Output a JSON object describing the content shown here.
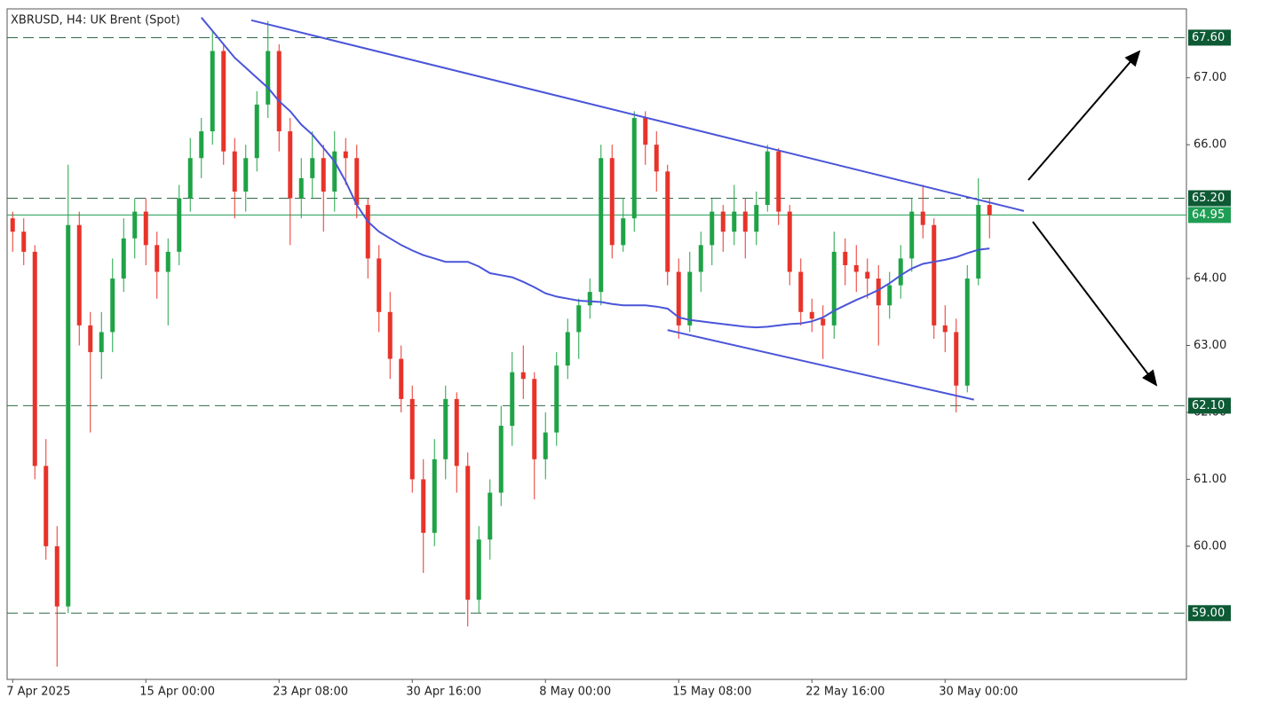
{
  "chart_data": {
    "type": "candlestick",
    "title": "XBRUSD, H4:  UK Brent (Spot)",
    "categories": [
      "7 Apr 2025",
      null,
      null,
      null,
      null,
      null,
      null,
      null,
      null,
      null,
      null,
      null,
      "15 Apr 00:00",
      null,
      null,
      null,
      null,
      null,
      null,
      null,
      null,
      null,
      null,
      null,
      "23 Apr 08:00",
      null,
      null,
      null,
      null,
      null,
      null,
      null,
      null,
      null,
      null,
      null,
      "30 Apr 16:00",
      null,
      null,
      null,
      null,
      null,
      null,
      null,
      null,
      null,
      null,
      null,
      "8 May 00:00",
      null,
      null,
      null,
      null,
      null,
      null,
      null,
      null,
      null,
      null,
      null,
      "15 May 08:00",
      null,
      null,
      null,
      null,
      null,
      null,
      null,
      null,
      null,
      null,
      null,
      "22 May 16:00",
      null,
      null,
      null,
      null,
      null,
      null,
      null,
      null,
      null,
      null,
      null,
      "30 May 00:00",
      null,
      null,
      null,
      null
    ],
    "open": [
      64.9,
      64.7,
      64.4,
      61.2,
      60.0,
      59.1,
      64.8,
      63.3,
      62.9,
      63.2,
      64.0,
      64.6,
      65.0,
      64.5,
      64.1,
      64.4,
      65.2,
      65.8,
      66.2,
      67.4,
      65.9,
      65.3,
      65.8,
      66.6,
      67.4,
      66.2,
      65.2,
      65.5,
      65.8,
      65.3,
      65.9,
      65.8,
      65.1,
      64.3,
      63.5,
      62.8,
      62.2,
      61.0,
      60.2,
      61.3,
      62.2,
      61.2,
      59.2,
      60.1,
      60.8,
      61.8,
      62.6,
      62.5,
      61.3,
      61.7,
      62.7,
      63.2,
      63.6,
      63.8,
      65.8,
      64.5,
      64.9,
      66.4,
      66.0,
      65.6,
      64.1,
      63.3,
      64.1,
      64.5,
      65.0,
      64.7,
      65.0,
      64.7,
      65.1,
      65.9,
      65.0,
      64.1,
      63.5,
      63.4,
      63.3,
      64.4,
      64.2,
      64.1,
      64.0,
      63.6,
      63.9,
      64.3,
      65.0,
      64.8,
      63.3,
      63.2,
      62.4,
      64.0,
      65.1
    ],
    "high": [
      65.0,
      64.9,
      64.5,
      61.6,
      60.3,
      65.7,
      65.0,
      63.5,
      63.5,
      64.3,
      64.9,
      65.2,
      65.2,
      64.7,
      64.6,
      65.4,
      66.1,
      66.4,
      67.7,
      67.5,
      66.1,
      66.0,
      66.8,
      67.85,
      67.5,
      66.4,
      65.8,
      66.2,
      66.0,
      66.2,
      66.1,
      66.0,
      65.2,
      64.5,
      63.8,
      63.0,
      62.4,
      61.3,
      61.6,
      62.4,
      62.3,
      61.4,
      60.3,
      61.0,
      62.1,
      62.9,
      63.0,
      62.6,
      62.0,
      62.9,
      63.4,
      63.7,
      64.0,
      66.0,
      66.0,
      65.2,
      66.5,
      66.5,
      66.2,
      65.7,
      64.3,
      64.4,
      64.7,
      65.2,
      65.1,
      65.4,
      65.2,
      65.3,
      66.0,
      65.95,
      65.1,
      64.3,
      63.7,
      63.6,
      64.7,
      64.6,
      64.5,
      64.3,
      64.2,
      64.1,
      64.5,
      65.2,
      65.4,
      64.9,
      63.6,
      63.4,
      64.2,
      65.5,
      65.2
    ],
    "low": [
      64.4,
      64.2,
      61.0,
      59.8,
      58.2,
      59.0,
      63.0,
      61.7,
      62.5,
      62.9,
      63.8,
      64.3,
      64.2,
      63.7,
      63.3,
      64.2,
      65.0,
      65.5,
      66.0,
      65.7,
      64.9,
      65.0,
      65.6,
      66.4,
      65.9,
      64.5,
      64.9,
      65.2,
      64.7,
      65.0,
      65.4,
      64.9,
      64.0,
      63.2,
      62.5,
      62.0,
      60.8,
      59.6,
      60.0,
      61.0,
      60.8,
      58.8,
      59.0,
      59.8,
      60.6,
      61.5,
      62.2,
      60.7,
      61.0,
      61.5,
      62.5,
      62.8,
      63.4,
      63.6,
      64.3,
      64.4,
      64.7,
      65.7,
      65.3,
      63.9,
      63.1,
      63.2,
      63.8,
      64.2,
      64.4,
      64.5,
      64.3,
      64.5,
      65.0,
      64.8,
      63.9,
      63.3,
      63.2,
      62.8,
      63.1,
      63.9,
      63.8,
      63.7,
      63.0,
      63.4,
      63.7,
      64.1,
      64.6,
      63.1,
      62.9,
      62.0,
      62.3,
      63.9,
      64.6
    ],
    "close": [
      64.7,
      64.4,
      61.2,
      60.0,
      59.1,
      64.8,
      63.3,
      62.9,
      63.2,
      64.0,
      64.6,
      65.0,
      64.5,
      64.1,
      64.4,
      65.2,
      65.8,
      66.2,
      67.4,
      65.9,
      65.3,
      65.8,
      66.6,
      67.4,
      66.2,
      65.2,
      65.5,
      65.8,
      65.3,
      65.9,
      65.8,
      65.1,
      64.3,
      63.5,
      62.8,
      62.2,
      61.0,
      60.2,
      61.3,
      62.2,
      61.2,
      59.2,
      60.1,
      60.8,
      61.8,
      62.6,
      62.5,
      61.3,
      61.7,
      62.7,
      63.2,
      63.6,
      63.8,
      65.8,
      64.5,
      64.9,
      66.4,
      66.0,
      65.6,
      64.1,
      63.3,
      64.1,
      64.5,
      65.0,
      64.7,
      65.0,
      64.7,
      65.1,
      65.9,
      65.0,
      64.1,
      63.5,
      63.4,
      63.3,
      64.4,
      64.2,
      64.1,
      64.0,
      63.6,
      63.9,
      64.3,
      65.0,
      64.8,
      63.3,
      63.2,
      62.4,
      64.0,
      65.1,
      64.95
    ],
    "up_color": "#1fa346",
    "down_color": "#e8332a",
    "moving_average": {
      "color": "#4a55d8",
      "values": [
        null,
        null,
        null,
        null,
        null,
        null,
        null,
        null,
        null,
        null,
        null,
        null,
        null,
        null,
        null,
        null,
        null,
        67.9,
        67.7,
        67.5,
        67.3,
        67.15,
        67.0,
        66.85,
        66.65,
        66.5,
        66.3,
        66.15,
        65.95,
        65.75,
        65.45,
        65.1,
        64.85,
        64.7,
        64.6,
        64.5,
        64.42,
        64.35,
        64.3,
        64.25,
        64.25,
        64.25,
        64.18,
        64.08,
        64.05,
        64.02,
        63.95,
        63.87,
        63.78,
        63.73,
        63.7,
        63.67,
        63.66,
        63.65,
        63.62,
        63.6,
        63.6,
        63.6,
        63.58,
        63.55,
        63.42,
        63.38,
        63.36,
        63.34,
        63.32,
        63.3,
        63.28,
        63.27,
        63.28,
        63.3,
        63.32,
        63.33,
        63.36,
        63.42,
        63.52,
        63.6,
        63.68,
        63.75,
        63.83,
        63.93,
        64.05,
        64.15,
        64.22,
        64.25,
        64.28,
        64.32,
        64.38,
        64.43,
        64.45
      ]
    },
    "trendlines": [
      {
        "color": "#4a55d8",
        "x": [
          21.5,
          91.1
        ],
        "y": [
          67.86,
          65.01
        ]
      },
      {
        "color": "#4a55d8",
        "x": [
          59.0,
          86.6
        ],
        "y": [
          63.23,
          62.19
        ]
      }
    ],
    "levels": [
      {
        "value": 67.6,
        "label": "67.60",
        "dashed": true,
        "color": "#0d5a35"
      },
      {
        "value": 65.2,
        "label": "65.20",
        "dashed": true,
        "color": "#0d5a35"
      },
      {
        "value": 64.95,
        "label": "64.95",
        "dashed": false,
        "color": "#1f9d55"
      },
      {
        "value": 62.1,
        "label": "62.10",
        "dashed": true,
        "color": "#0d5a35"
      },
      {
        "value": 59.0,
        "label": "59.00",
        "dashed": true,
        "color": "#0d5a35"
      }
    ],
    "ylim": [
      58.01,
      68.03
    ],
    "yticks": [
      {
        "value": 60,
        "label": "60.00"
      },
      {
        "value": 61,
        "label": "61.00"
      },
      {
        "value": 62,
        "label": "62.00"
      },
      {
        "value": 63,
        "label": "63.00"
      },
      {
        "value": 64,
        "label": "64.00"
      },
      {
        "value": 66,
        "label": "66.00"
      },
      {
        "value": 67,
        "label": "67.00"
      }
    ]
  }
}
